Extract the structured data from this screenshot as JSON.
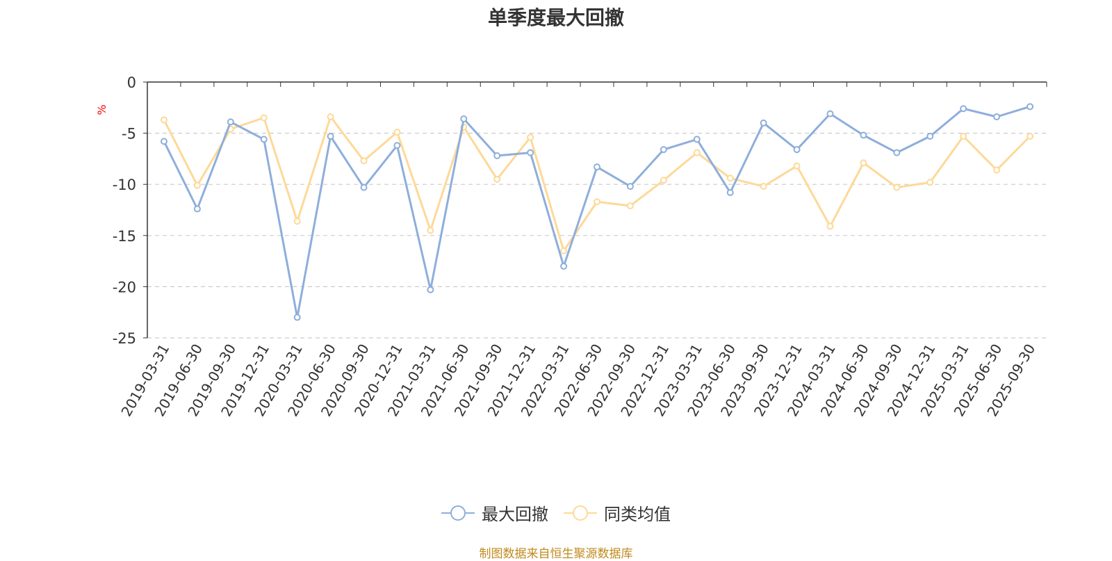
{
  "chart_data": {
    "type": "line",
    "title": "单季度最大回撤",
    "ylabel": "%",
    "xlabel": "",
    "ylim": [
      -25,
      0
    ],
    "yticks": [
      0,
      -5,
      -10,
      -15,
      -20,
      -25
    ],
    "grid": true,
    "legend_position": "bottom",
    "categories": [
      "2019-03-31",
      "2019-06-30",
      "2019-09-30",
      "2019-12-31",
      "2020-03-31",
      "2020-06-30",
      "2020-09-30",
      "2020-12-31",
      "2021-03-31",
      "2021-06-30",
      "2021-09-30",
      "2021-12-31",
      "2022-03-31",
      "2022-06-30",
      "2022-09-30",
      "2022-12-31",
      "2023-03-31",
      "2023-06-30",
      "2023-09-30",
      "2023-12-31",
      "2024-03-31",
      "2024-06-30",
      "2024-09-30",
      "2024-12-31",
      "2025-03-31",
      "2025-06-30",
      "2025-09-30"
    ],
    "series": [
      {
        "name": "最大回撤",
        "color": "#8eaedb",
        "values": [
          -5.8,
          -12.4,
          -3.9,
          -5.6,
          -23.0,
          -5.3,
          -10.3,
          -6.2,
          -20.3,
          -3.6,
          -7.2,
          -6.9,
          -18.0,
          -8.3,
          -10.2,
          -6.6,
          -5.6,
          -10.8,
          -4.0,
          -6.6,
          -3.1,
          -5.2,
          -6.9,
          -5.3,
          -2.6,
          -3.4,
          -2.4
        ]
      },
      {
        "name": "同类均值",
        "color": "#fdd998",
        "values": [
          -3.7,
          -10.1,
          -4.6,
          -3.5,
          -13.6,
          -3.4,
          -7.7,
          -4.9,
          -14.5,
          -4.4,
          -9.5,
          -5.4,
          -16.5,
          -11.7,
          -12.1,
          -9.6,
          -6.9,
          -9.4,
          -10.2,
          -8.2,
          -14.1,
          -7.9,
          -10.3,
          -9.8,
          -5.3,
          -8.6,
          -5.3
        ]
      }
    ],
    "source_note": "制图数据来自恒生聚源数据库"
  }
}
